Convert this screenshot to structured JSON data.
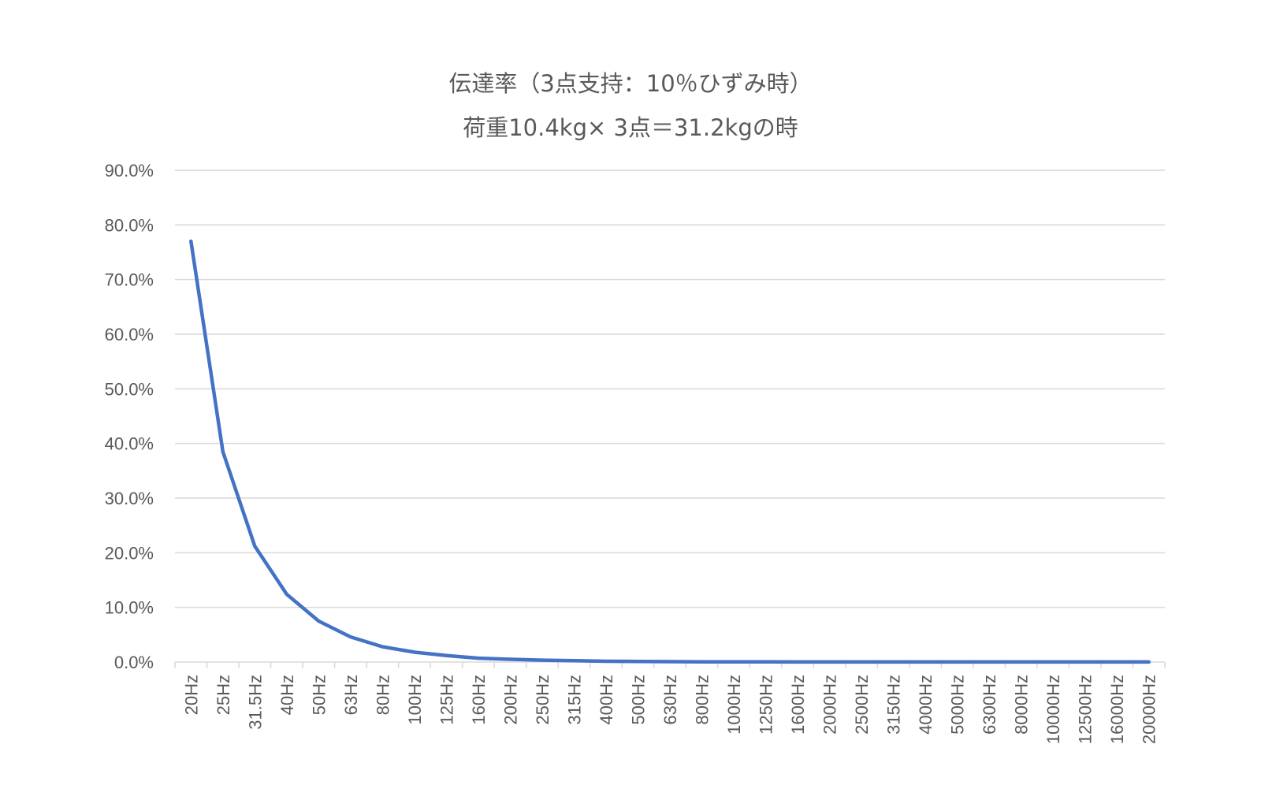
{
  "chart_data": {
    "type": "line",
    "title": "伝達率（3点支持：10％ひずみ時）",
    "subtitle": "荷重10.4kg× 3点＝31.2kgの時",
    "xlabel": "",
    "ylabel": "",
    "ylim": [
      0,
      90
    ],
    "yticks": [
      "0.0%",
      "10.0%",
      "20.0%",
      "30.0%",
      "40.0%",
      "50.0%",
      "60.0%",
      "70.0%",
      "80.0%",
      "90.0%"
    ],
    "grid": true,
    "legend": "none",
    "line_color": "#4472C4",
    "categories": [
      "20Hz",
      "25Hz",
      "31.5Hz",
      "40Hz",
      "50Hz",
      "63Hz",
      "80Hz",
      "100Hz",
      "125Hz",
      "160Hz",
      "200Hz",
      "250Hz",
      "315Hz",
      "400Hz",
      "500Hz",
      "630Hz",
      "800Hz",
      "1000Hz",
      "1250Hz",
      "1600Hz",
      "2000Hz",
      "2500Hz",
      "3150Hz",
      "4000Hz",
      "5000Hz",
      "6300Hz",
      "8000Hz",
      "10000Hz",
      "12500Hz",
      "16000Hz",
      "20000Hz"
    ],
    "series": [
      {
        "values": [
          77.0,
          38.5,
          21.2,
          12.4,
          7.5,
          4.6,
          2.8,
          1.8,
          1.2,
          0.7,
          0.5,
          0.35,
          0.25,
          0.15,
          0.1,
          0.07,
          0.05,
          0.04,
          0.03,
          0.02,
          0.015,
          0.01,
          0.01,
          0.01,
          0.01,
          0.01,
          0.01,
          0.01,
          0.01,
          0.01,
          0.01
        ]
      }
    ]
  }
}
